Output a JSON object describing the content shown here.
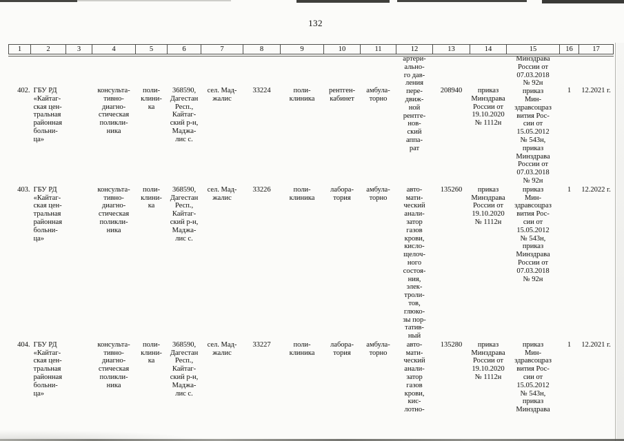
{
  "page": {
    "number": "132"
  },
  "colors": {
    "text": "#1e1e1c",
    "border": "#4e4e4a",
    "page_bg": "#fbfbf9"
  },
  "table": {
    "header": [
      "1",
      "2",
      "3",
      "4",
      "5",
      "6",
      "7",
      "8",
      "9",
      "10",
      "11",
      "12",
      "13",
      "14",
      "15",
      "16",
      "17"
    ],
    "rows": [
      {
        "cells": {
          "c1": "402.",
          "c2": "ГБУ РД\n«Кайтаг-\nская цен-\nтральная\nрайонная\nбольни-\nца»",
          "c3": "",
          "c4": "консульта-\nтивно-\nдиагно-\nстическая\nполикли-\nника",
          "c5": "поли-\nклини-\nка",
          "c6": "368590,\nДагестан\nРесп.,\nКайтаг-\nский р-н,\nМаджа-\nлис с.",
          "c7": "сел. Мад-\nжалис",
          "c8": "33224",
          "c9": "поли-\nклиника",
          "c10": "рентген-\nкабинет",
          "c11": "амбула-\nторно",
          "c12": "артери-\nально-\nго дав-\nления\nпере-\nдвиж-\nной\nрентге-\nнов-\nский\nаппа-\nрат",
          "c13": "208940",
          "c14": "приказ\nМинздрава\nРоссии от\n19.10.2020\n№ 1112н",
          "c15": "Минздрава\nРоссии от\n07.03.2018\n№ 92н\nприказ\nМин-\nздравсоцраз\nвития Рос-\nсии от\n15.05.2012\n№ 543н,\nприказ\nМинздрава\nРоссии от\n07.03.2018\n№ 92н",
          "c16": "1",
          "c17": "12.2021 г."
        }
      },
      {
        "cells": {
          "c1": "403.",
          "c2": "ГБУ РД\n«Кайтаг-\nская цен-\nтральная\nрайонная\nбольни-\nца»",
          "c3": "",
          "c4": "консульта-\nтивно-\nдиагно-\nстическая\nполикли-\nника",
          "c5": "поли-\nклини-\nка",
          "c6": "368590,\nДагестан\nРесп.,\nКайтаг-\nский р-н,\nМаджа-\nлис с.",
          "c7": "сел. Мад-\nжалис",
          "c8": "33226",
          "c9": "поли-\nклиника",
          "c10": "лабора-\nтория",
          "c11": "амбула-\nторно",
          "c12": "авто-\nмати-\nческий\nанали-\nзатор\nгазов\nкрови,\nкисло-\nщелоч-\nного\nсостоя-\nния,\nэлек-\nтроли-\nтов,\nглюко-\nзы пор-\nтатив-\nный",
          "c13": "135260",
          "c14": "приказ\nМинздрава\nРоссии от\n19.10.2020\n№ 1112н",
          "c15": "приказ\nМин-\nздравсоцраз\nвития Рос-\nсии от\n15.05.2012\n№ 543н,\nприказ\nМинздрава\nРоссии от\n07.03.2018\n№ 92н",
          "c16": "1",
          "c17": "12.2022 г."
        }
      },
      {
        "cells": {
          "c1": "404.",
          "c2": "ГБУ РД\n«Кайтаг-\nская цен-\nтральная\nрайонная\nбольни-\nца»",
          "c3": "",
          "c4": "консульта-\nтивно-\nдиагно-\nстическая\nполикли-\nника",
          "c5": "поли-\nклини-\nка",
          "c6": "368590,\nДагестан\nРесп.,\nКайтаг-\nский р-н,\nМаджа-\nлис с.",
          "c7": "сел. Мад-\nжалис",
          "c8": "33227",
          "c9": "поли-\nклиника",
          "c10": "лабора-\nтория",
          "c11": "амбула-\nторно",
          "c12": "авто-\nмати-\nческий\nанали-\nзатор\nгазов\nкрови,\nкис-\nлотно-",
          "c13": "135280",
          "c14": "приказ\nМинздрава\nРоссии от\n19.10.2020\n№ 1112н",
          "c15": "приказ\nМин-\nздравсоцраз\nвития Рос-\nсии от\n15.05.2012\n№ 543н,\nприказ\nМинздрава",
          "c16": "1",
          "c17": "12.2021 г."
        }
      }
    ]
  }
}
